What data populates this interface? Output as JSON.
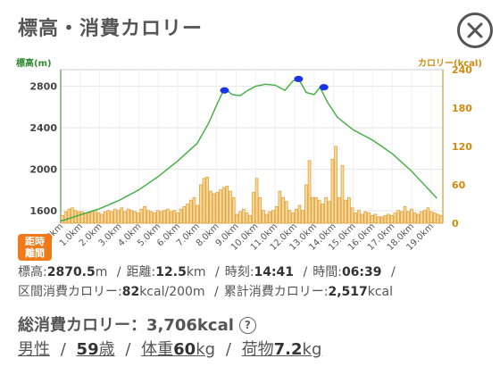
{
  "header": {
    "title": "標高・消費カロリー"
  },
  "chart_data": {
    "type": "line+bar",
    "left_axis_label": "標高(m)",
    "right_axis_label": "カロリー(kcal)",
    "left_ticks": [
      "2800",
      "2400",
      "2000",
      "1600"
    ],
    "right_ticks": [
      "240",
      "180",
      "120",
      "60",
      "0"
    ],
    "x_ticks": [
      "0.0km",
      "1.0km",
      "2.0km",
      "3.0km",
      "4.0km",
      "5.0km",
      "6.0km",
      "7.0km",
      "8.0km",
      "9.0km",
      "10.0km",
      "11.0km",
      "12.0km",
      "13.0km",
      "14.0km",
      "15.0km",
      "16.0km",
      "17.0km",
      "18.0km",
      "19.0km"
    ],
    "elevation_ylim": [
      1480,
      2960
    ],
    "calorie_ylim": [
      0,
      240
    ],
    "xlim": [
      0,
      19.6
    ],
    "elevation_line": [
      [
        0,
        1500
      ],
      [
        1,
        1560
      ],
      [
        2,
        1620
      ],
      [
        3,
        1700
      ],
      [
        4,
        1800
      ],
      [
        5,
        1930
      ],
      [
        6,
        2080
      ],
      [
        7,
        2250
      ],
      [
        7.6,
        2450
      ],
      [
        8,
        2620
      ],
      [
        8.4,
        2780
      ],
      [
        8.8,
        2720
      ],
      [
        9.2,
        2710
      ],
      [
        9.6,
        2760
      ],
      [
        10,
        2800
      ],
      [
        10.5,
        2820
      ],
      [
        11,
        2810
      ],
      [
        11.5,
        2760
      ],
      [
        11.9,
        2850
      ],
      [
        12.2,
        2870
      ],
      [
        12.6,
        2740
      ],
      [
        13,
        2720
      ],
      [
        13.3,
        2790
      ],
      [
        13.7,
        2640
      ],
      [
        14.2,
        2500
      ],
      [
        15,
        2380
      ],
      [
        16,
        2280
      ],
      [
        17,
        2150
      ],
      [
        18,
        1980
      ],
      [
        18.6,
        1860
      ],
      [
        19.3,
        1720
      ]
    ],
    "elevation_markers": [
      [
        8.4,
        2760
      ],
      [
        12.2,
        2870
      ],
      [
        13.5,
        2790
      ]
    ],
    "calorie_bars": [
      12,
      18,
      22,
      24,
      20,
      18,
      18,
      16,
      16,
      18,
      20,
      16,
      14,
      18,
      20,
      18,
      22,
      20,
      24,
      18,
      22,
      20,
      18,
      16,
      22,
      26,
      20,
      18,
      16,
      20,
      18,
      20,
      22,
      18,
      20,
      16,
      22,
      26,
      30,
      36,
      40,
      28,
      60,
      70,
      72,
      50,
      46,
      48,
      52,
      56,
      58,
      50,
      40,
      14,
      18,
      22,
      16,
      12,
      48,
      70,
      40,
      20,
      14,
      18,
      20,
      26,
      50,
      40,
      34,
      20,
      16,
      22,
      28,
      20,
      60,
      98,
      40,
      40,
      36,
      30,
      40,
      34,
      100,
      120,
      40,
      90,
      36,
      40,
      24,
      16,
      20,
      14,
      18,
      16,
      12,
      14,
      10,
      10,
      12,
      14,
      12,
      16,
      20,
      18,
      26,
      18,
      22,
      16,
      14,
      18,
      20,
      24,
      18,
      16,
      14,
      12
    ]
  },
  "mode_button": {
    "line1": "距",
    "line1b": "時",
    "line2": "離",
    "line2b": "間"
  },
  "info1": {
    "elev_label": "標高:",
    "elev_value": "2870.5",
    "elev_unit": "m",
    "dist_label": "距離:",
    "dist_value": "12.5",
    "dist_unit": "km",
    "time_label": "時刻:",
    "time_value": "14:41",
    "dur_label": "時間:",
    "dur_value": "06:39"
  },
  "info2": {
    "section_label": "区間消費カロリー:",
    "section_value": "82",
    "section_unit": "kcal/200m",
    "cum_label": "累計消費カロリー:",
    "cum_value": "2,517",
    "cum_unit": "kcal"
  },
  "total": {
    "label": "総消費カロリー：",
    "value": "3,706kcal",
    "help": "?"
  },
  "profile": {
    "gender": "男性",
    "age_value": "59",
    "age_unit": "歳",
    "weight_label": "体重",
    "weight_value": "60",
    "weight_unit": "kg",
    "load_label": "荷物",
    "load_value": "7.2",
    "load_unit": "kg"
  }
}
